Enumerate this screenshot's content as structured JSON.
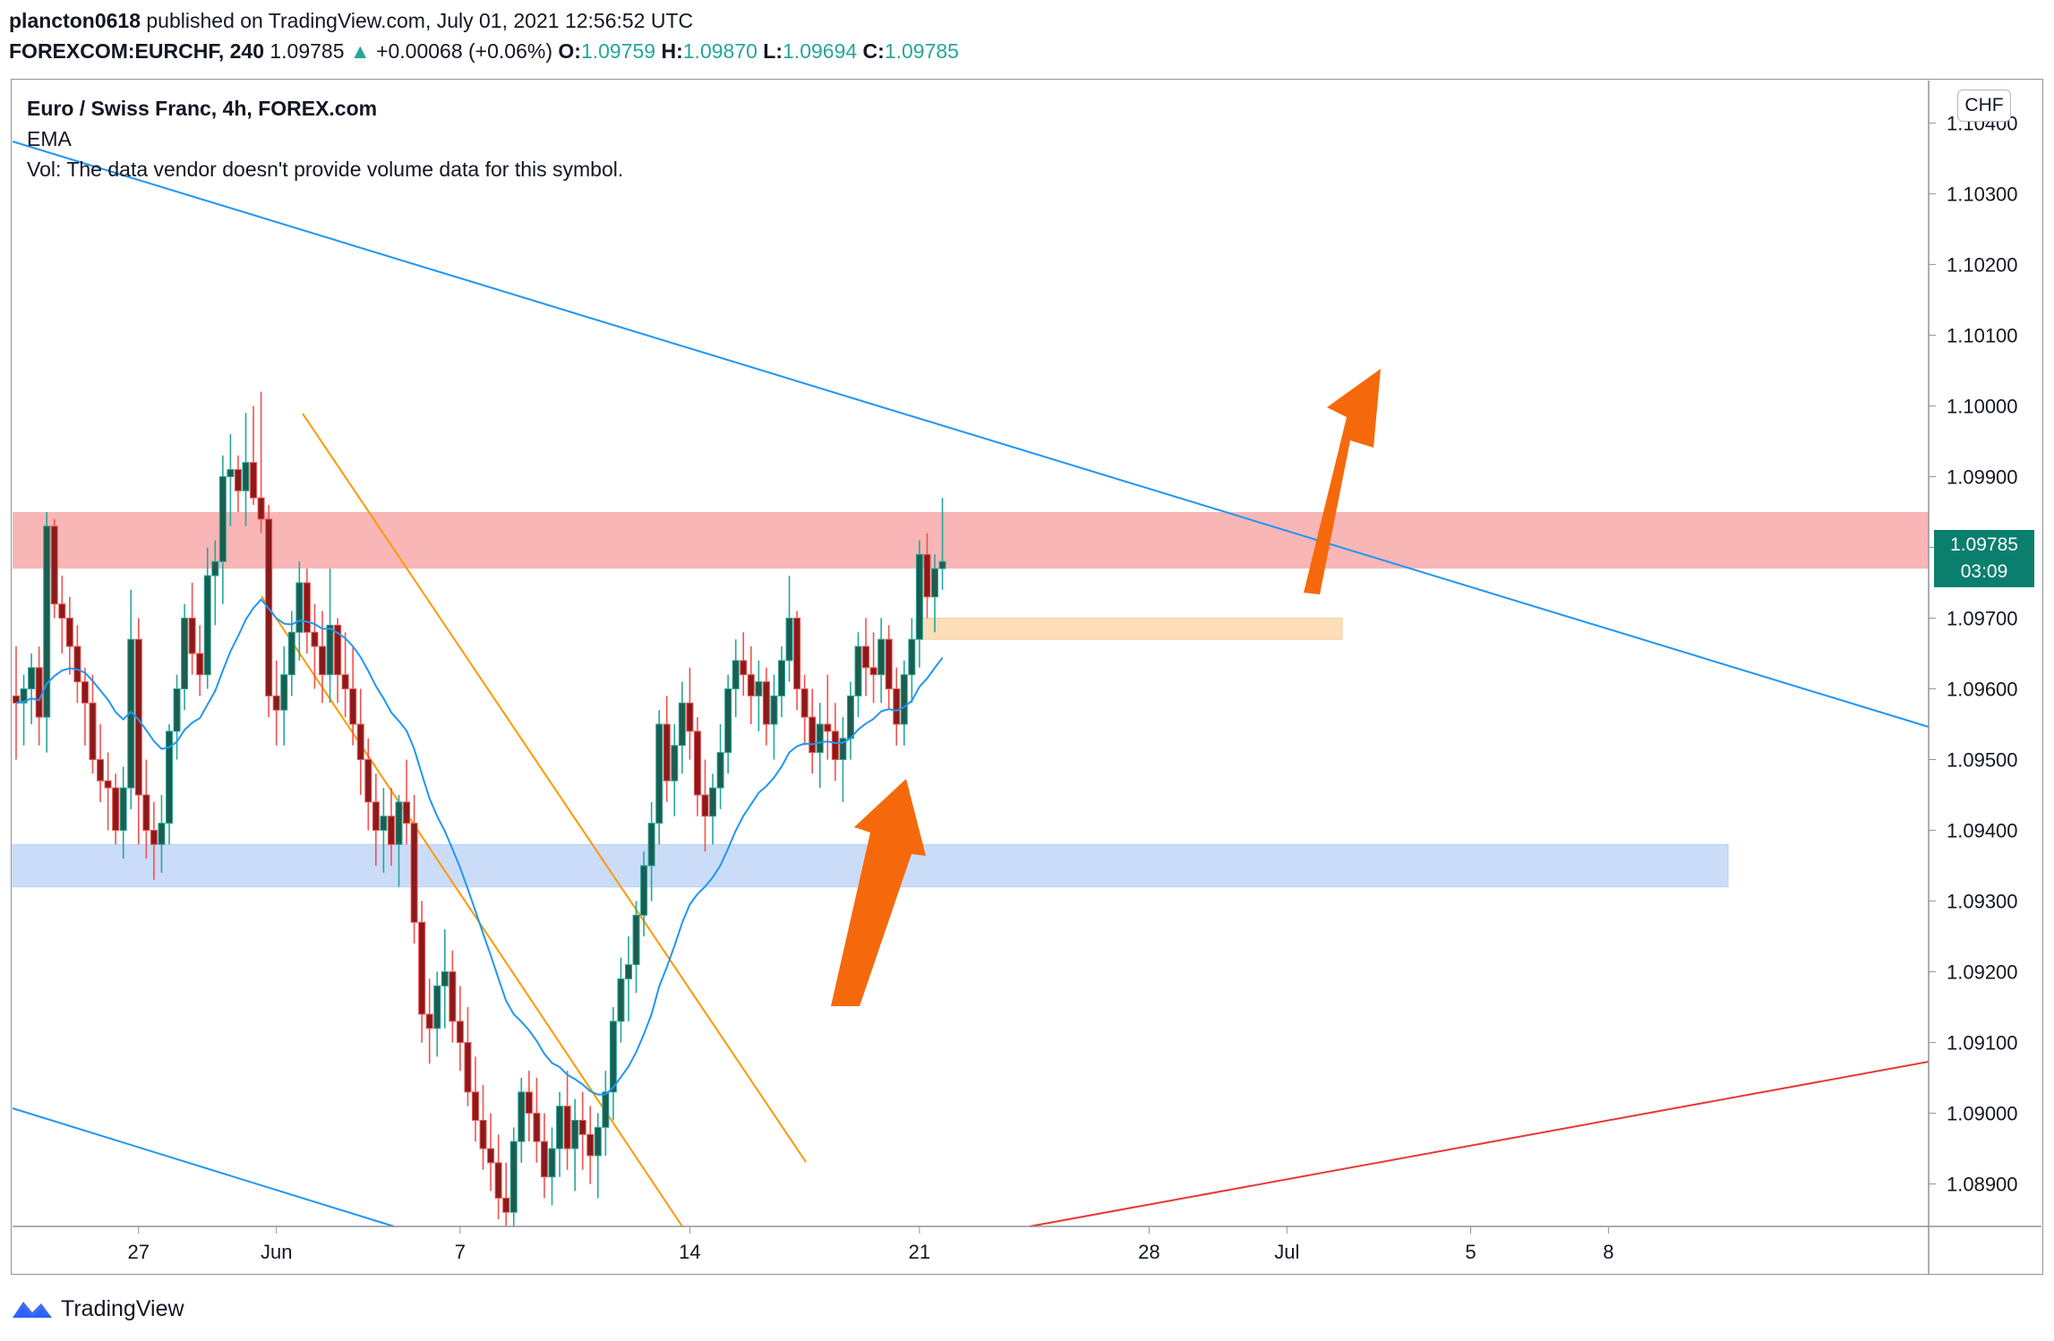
{
  "header": {
    "publisher": "plancton0618",
    "published_text": "published on TradingView.com, July 01, 2021 12:56:52 UTC",
    "symbol": "FOREXCOM:EURCHF, 240",
    "last_price": "1.09785",
    "change_arrow": "▲",
    "change": "+0.00068 (+0.06%)",
    "o_label": "O:",
    "o_value": "1.09759",
    "h_label": "H:",
    "h_value": "1.09870",
    "l_label": "L:",
    "l_value": "1.09694",
    "c_label": "C:",
    "c_value": "1.09785"
  },
  "legend": {
    "title": "Euro / Swiss Franc, 4h, FOREX.com",
    "indicator": "EMA",
    "volume_note": "Vol: The data vendor doesn't provide volume data for this symbol."
  },
  "currency_button": "CHF",
  "price_tag": {
    "price": "1.09785",
    "countdown": "03:09"
  },
  "footer": {
    "brand": "TradingView"
  },
  "colors": {
    "up_candle": "#26a69a",
    "down_candle": "#ef5350",
    "body_dark": "#1b5e50",
    "body_red": "#8b1a1a",
    "ema": "#2196f3",
    "trendline_blue": "#2196f3",
    "channel_orange": "#ff9800",
    "support_line": "#e53935",
    "resistance_zone": "#f8a9a9",
    "support_zone": "#a9c6f5",
    "mini_zone": "#fdd6a8",
    "arrow": "#f5690c"
  },
  "chart_data": {
    "type": "candlestick",
    "symbol": "EURCHF",
    "timeframe": "4h",
    "ylim": [
      1.0884,
      1.1046
    ],
    "y_ticks": [
      "1.08900",
      "1.09000",
      "1.09100",
      "1.09200",
      "1.09300",
      "1.09400",
      "1.09500",
      "1.09600",
      "1.09700",
      "1.09800",
      "1.09900",
      "1.10000",
      "1.10100",
      "1.10200",
      "1.10300",
      "1.10400"
    ],
    "x_ticks": [
      {
        "label": "27",
        "index": 16
      },
      {
        "label": "Jun",
        "index": 34
      },
      {
        "label": "7",
        "index": 58
      },
      {
        "label": "14",
        "index": 88
      },
      {
        "label": "21",
        "index": 118
      },
      {
        "label": "28",
        "index": 148
      },
      {
        "label": "Jul",
        "index": 166
      },
      {
        "label": "5",
        "index": 190
      },
      {
        "label": "8",
        "index": 208
      }
    ],
    "ohlc": [
      [
        1.0959,
        1.0966,
        1.095,
        1.0958
      ],
      [
        1.0958,
        1.0962,
        1.0952,
        1.096
      ],
      [
        1.096,
        1.0965,
        1.0955,
        1.0963
      ],
      [
        1.0963,
        1.0966,
        1.0952,
        1.0956
      ],
      [
        1.0956,
        1.0985,
        1.0951,
        1.0983
      ],
      [
        1.0983,
        1.0984,
        1.097,
        1.0972
      ],
      [
        1.0972,
        1.0976,
        1.0965,
        1.097
      ],
      [
        1.097,
        1.0973,
        1.0962,
        1.0966
      ],
      [
        1.0966,
        1.0969,
        1.0958,
        1.0961
      ],
      [
        1.0961,
        1.0963,
        1.0952,
        1.0958
      ],
      [
        1.0958,
        1.0962,
        1.0948,
        1.095
      ],
      [
        1.095,
        1.0955,
        1.0944,
        1.0947
      ],
      [
        1.0947,
        1.0951,
        1.094,
        1.0946
      ],
      [
        1.0946,
        1.0948,
        1.0938,
        1.094
      ],
      [
        1.094,
        1.0949,
        1.0936,
        1.0946
      ],
      [
        1.0946,
        1.0974,
        1.0943,
        1.0967
      ],
      [
        1.0967,
        1.097,
        1.0938,
        1.0945
      ],
      [
        1.0945,
        1.095,
        1.0936,
        1.094
      ],
      [
        1.094,
        1.0944,
        1.0933,
        1.0938
      ],
      [
        1.0938,
        1.0945,
        1.0934,
        1.0941
      ],
      [
        1.0941,
        1.0955,
        1.0938,
        1.0954
      ],
      [
        1.0954,
        1.0962,
        1.095,
        1.096
      ],
      [
        1.096,
        1.0972,
        1.0957,
        1.097
      ],
      [
        1.097,
        1.0975,
        1.0962,
        1.0965
      ],
      [
        1.0965,
        1.0969,
        1.0959,
        1.0962
      ],
      [
        1.0962,
        1.098,
        1.096,
        1.0976
      ],
      [
        1.0976,
        1.0981,
        1.0969,
        1.0978
      ],
      [
        1.0978,
        1.0993,
        1.0972,
        1.099
      ],
      [
        1.099,
        1.0996,
        1.0983,
        1.0991
      ],
      [
        1.0991,
        1.0993,
        1.0985,
        1.0988
      ],
      [
        1.0988,
        1.0999,
        1.0983,
        1.0992
      ],
      [
        1.0992,
        1.1,
        1.0986,
        1.0987
      ],
      [
        1.0987,
        1.1002,
        1.0982,
        1.0984
      ],
      [
        1.0984,
        1.0986,
        1.0956,
        1.0959
      ],
      [
        1.0959,
        1.0964,
        1.0952,
        1.0957
      ],
      [
        1.0957,
        1.0966,
        1.0952,
        1.0962
      ],
      [
        1.0962,
        1.0971,
        1.0959,
        1.0968
      ],
      [
        1.0968,
        1.0978,
        1.0964,
        1.0975
      ],
      [
        1.0975,
        1.0977,
        1.0965,
        1.0968
      ],
      [
        1.0968,
        1.0972,
        1.096,
        1.0966
      ],
      [
        1.0966,
        1.0971,
        1.0958,
        1.0962
      ],
      [
        1.0962,
        1.0977,
        1.0958,
        1.0969
      ],
      [
        1.0969,
        1.097,
        1.0958,
        1.0962
      ],
      [
        1.0962,
        1.0968,
        1.0956,
        1.096
      ],
      [
        1.096,
        1.0966,
        1.0952,
        1.0955
      ],
      [
        1.0955,
        1.096,
        1.0945,
        1.095
      ],
      [
        1.095,
        1.0953,
        1.094,
        1.0944
      ],
      [
        1.0944,
        1.0948,
        1.0935,
        1.094
      ],
      [
        1.094,
        1.0946,
        1.0934,
        1.0942
      ],
      [
        1.0942,
        1.0946,
        1.0935,
        1.0938
      ],
      [
        1.0938,
        1.0945,
        1.0932,
        1.0944
      ],
      [
        1.0944,
        1.095,
        1.0938,
        1.0941
      ],
      [
        1.0941,
        1.0945,
        1.0924,
        1.0927
      ],
      [
        1.0927,
        1.093,
        1.091,
        1.0914
      ],
      [
        1.0914,
        1.0919,
        1.0907,
        1.0912
      ],
      [
        1.0912,
        1.092,
        1.0908,
        1.0918
      ],
      [
        1.0918,
        1.0926,
        1.0912,
        1.092
      ],
      [
        1.092,
        1.0923,
        1.091,
        1.0913
      ],
      [
        1.0913,
        1.0918,
        1.0906,
        1.091
      ],
      [
        1.091,
        1.0915,
        1.0901,
        1.0903
      ],
      [
        1.0903,
        1.0908,
        1.0896,
        1.0899
      ],
      [
        1.0899,
        1.0904,
        1.0892,
        1.0895
      ],
      [
        1.0895,
        1.09,
        1.0889,
        1.0893
      ],
      [
        1.0893,
        1.0897,
        1.0885,
        1.0888
      ],
      [
        1.0888,
        1.0893,
        1.0884,
        1.0886
      ],
      [
        1.0886,
        1.0898,
        1.0884,
        1.0896
      ],
      [
        1.0896,
        1.0905,
        1.0893,
        1.0903
      ],
      [
        1.0903,
        1.0906,
        1.0896,
        1.09
      ],
      [
        1.09,
        1.0905,
        1.0893,
        1.0896
      ],
      [
        1.0896,
        1.09,
        1.0888,
        1.0891
      ],
      [
        1.0891,
        1.0898,
        1.0887,
        1.0895
      ],
      [
        1.0895,
        1.0903,
        1.0891,
        1.0901
      ],
      [
        1.0901,
        1.0906,
        1.0892,
        1.0895
      ],
      [
        1.0895,
        1.0902,
        1.0889,
        1.0899
      ],
      [
        1.0899,
        1.0903,
        1.0892,
        1.0897
      ],
      [
        1.0897,
        1.0901,
        1.089,
        1.0894
      ],
      [
        1.0894,
        1.09,
        1.0888,
        1.0898
      ],
      [
        1.0898,
        1.0906,
        1.0894,
        1.0903
      ],
      [
        1.0903,
        1.0915,
        1.0899,
        1.0913
      ],
      [
        1.0913,
        1.0922,
        1.091,
        1.0919
      ],
      [
        1.0919,
        1.0925,
        1.0913,
        1.0921
      ],
      [
        1.0921,
        1.093,
        1.0917,
        1.0928
      ],
      [
        1.0928,
        1.0937,
        1.0925,
        1.0935
      ],
      [
        1.0935,
        1.0944,
        1.093,
        1.0941
      ],
      [
        1.0941,
        1.0957,
        1.0938,
        1.0955
      ],
      [
        1.0955,
        1.0959,
        1.0944,
        1.0947
      ],
      [
        1.0947,
        1.0955,
        1.0942,
        1.0952
      ],
      [
        1.0952,
        1.0961,
        1.0948,
        1.0958
      ],
      [
        1.0958,
        1.0963,
        1.095,
        1.0954
      ],
      [
        1.0954,
        1.0956,
        1.0942,
        1.0945
      ],
      [
        1.0945,
        1.095,
        1.0937,
        1.0942
      ],
      [
        1.0942,
        1.0948,
        1.0938,
        1.0946
      ],
      [
        1.0946,
        1.0955,
        1.0943,
        1.0951
      ],
      [
        1.0951,
        1.0962,
        1.0948,
        1.096
      ],
      [
        1.096,
        1.0967,
        1.0956,
        1.0964
      ],
      [
        1.0964,
        1.0968,
        1.0959,
        1.0962
      ],
      [
        1.0962,
        1.0966,
        1.0955,
        1.0959
      ],
      [
        1.0959,
        1.0964,
        1.0954,
        1.0961
      ],
      [
        1.0961,
        1.0963,
        1.0952,
        1.0955
      ],
      [
        1.0955,
        1.0962,
        1.095,
        1.0959
      ],
      [
        1.0959,
        1.0966,
        1.0956,
        1.0964
      ],
      [
        1.0964,
        1.0976,
        1.0961,
        1.097
      ],
      [
        1.097,
        1.0971,
        1.0957,
        1.096
      ],
      [
        1.096,
        1.0962,
        1.0952,
        1.0956
      ],
      [
        1.0956,
        1.096,
        1.0948,
        1.0951
      ],
      [
        1.0951,
        1.0958,
        1.0946,
        1.0955
      ],
      [
        1.0955,
        1.0962,
        1.095,
        1.0954
      ],
      [
        1.0954,
        1.0958,
        1.0947,
        1.095
      ],
      [
        1.095,
        1.0956,
        1.0944,
        1.0953
      ],
      [
        1.0953,
        1.0961,
        1.095,
        1.0959
      ],
      [
        1.0959,
        1.0968,
        1.0956,
        1.0966
      ],
      [
        1.0966,
        1.097,
        1.0959,
        1.0963
      ],
      [
        1.0963,
        1.0968,
        1.0958,
        1.0962
      ],
      [
        1.0962,
        1.097,
        1.0958,
        1.0967
      ],
      [
        1.0967,
        1.0969,
        1.0957,
        1.096
      ],
      [
        1.096,
        1.0963,
        1.0952,
        1.0955
      ],
      [
        1.0955,
        1.0964,
        1.0952,
        1.0962
      ],
      [
        1.0962,
        1.097,
        1.0958,
        1.0967
      ],
      [
        1.0967,
        1.0981,
        1.0963,
        1.0979
      ],
      [
        1.0979,
        1.0982,
        1.097,
        1.0973
      ],
      [
        1.0973,
        1.0979,
        1.0968,
        1.0977
      ],
      [
        1.0977,
        1.0987,
        1.0974,
        1.0978
      ]
    ]
  }
}
